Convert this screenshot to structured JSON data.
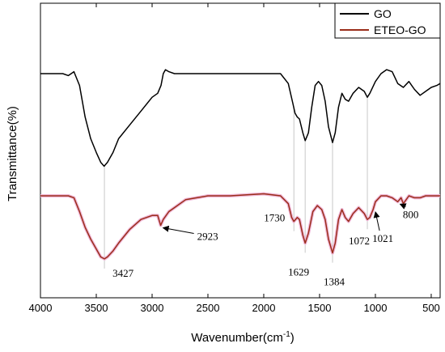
{
  "chart_data": {
    "type": "line",
    "xlabel": "Wavenumber(cm",
    "xlabel_sup": "-1",
    "xlabel_end": ")",
    "ylabel": "Transmittance(%)",
    "xlim": [
      4000,
      420
    ],
    "x_reversed": true,
    "x_ticks": [
      4000,
      3500,
      3000,
      2500,
      2000,
      1500,
      1000,
      500
    ],
    "y_ticks_shown": false,
    "legend_position": "top-right",
    "series": [
      {
        "name": "GO",
        "color": "#000000",
        "points": [
          [
            4000,
            90
          ],
          [
            3800,
            90
          ],
          [
            3750,
            89
          ],
          [
            3700,
            91
          ],
          [
            3650,
            84
          ],
          [
            3600,
            68
          ],
          [
            3550,
            57
          ],
          [
            3500,
            50
          ],
          [
            3460,
            45
          ],
          [
            3430,
            43
          ],
          [
            3400,
            45
          ],
          [
            3350,
            50
          ],
          [
            3300,
            57
          ],
          [
            3200,
            64
          ],
          [
            3100,
            71
          ],
          [
            3000,
            78
          ],
          [
            2950,
            80
          ],
          [
            2920,
            84
          ],
          [
            2900,
            90
          ],
          [
            2880,
            92
          ],
          [
            2850,
            91
          ],
          [
            2800,
            90
          ],
          [
            2500,
            90
          ],
          [
            2000,
            90
          ],
          [
            1850,
            90
          ],
          [
            1780,
            85
          ],
          [
            1740,
            75
          ],
          [
            1720,
            70
          ],
          [
            1700,
            68
          ],
          [
            1680,
            67
          ],
          [
            1650,
            60
          ],
          [
            1629,
            56
          ],
          [
            1600,
            60
          ],
          [
            1570,
            73
          ],
          [
            1540,
            84
          ],
          [
            1510,
            86
          ],
          [
            1480,
            84
          ],
          [
            1450,
            76
          ],
          [
            1420,
            63
          ],
          [
            1384,
            55
          ],
          [
            1360,
            60
          ],
          [
            1330,
            73
          ],
          [
            1300,
            80
          ],
          [
            1270,
            77
          ],
          [
            1240,
            76
          ],
          [
            1200,
            80
          ],
          [
            1150,
            83
          ],
          [
            1100,
            81
          ],
          [
            1072,
            78
          ],
          [
            1050,
            80
          ],
          [
            1000,
            86
          ],
          [
            950,
            90
          ],
          [
            900,
            92
          ],
          [
            850,
            91
          ],
          [
            800,
            85
          ],
          [
            750,
            83
          ],
          [
            700,
            86
          ],
          [
            650,
            82
          ],
          [
            600,
            79
          ],
          [
            550,
            81
          ],
          [
            500,
            83
          ],
          [
            450,
            84
          ],
          [
            420,
            85
          ]
        ]
      },
      {
        "name": "ETEO-GO",
        "color": "#9a2d1a",
        "points": [
          [
            4000,
            28
          ],
          [
            3800,
            28
          ],
          [
            3750,
            28
          ],
          [
            3700,
            27
          ],
          [
            3650,
            20
          ],
          [
            3600,
            12
          ],
          [
            3550,
            6
          ],
          [
            3500,
            1
          ],
          [
            3460,
            -3
          ],
          [
            3427,
            -4
          ],
          [
            3400,
            -3
          ],
          [
            3350,
            0
          ],
          [
            3300,
            4
          ],
          [
            3200,
            11
          ],
          [
            3100,
            16
          ],
          [
            3000,
            18
          ],
          [
            2950,
            18
          ],
          [
            2923,
            13
          ],
          [
            2900,
            16
          ],
          [
            2850,
            20
          ],
          [
            2800,
            22
          ],
          [
            2700,
            26
          ],
          [
            2600,
            27
          ],
          [
            2500,
            28
          ],
          [
            2300,
            28
          ],
          [
            2000,
            29
          ],
          [
            1850,
            28
          ],
          [
            1780,
            24
          ],
          [
            1750,
            17
          ],
          [
            1730,
            15
          ],
          [
            1700,
            17
          ],
          [
            1680,
            16
          ],
          [
            1650,
            8
          ],
          [
            1629,
            4
          ],
          [
            1600,
            9
          ],
          [
            1560,
            20
          ],
          [
            1520,
            23
          ],
          [
            1480,
            21
          ],
          [
            1450,
            16
          ],
          [
            1420,
            6
          ],
          [
            1384,
            -1
          ],
          [
            1360,
            4
          ],
          [
            1330,
            16
          ],
          [
            1300,
            21
          ],
          [
            1270,
            17
          ],
          [
            1240,
            15
          ],
          [
            1200,
            19
          ],
          [
            1150,
            22
          ],
          [
            1100,
            19
          ],
          [
            1072,
            16
          ],
          [
            1050,
            17
          ],
          [
            1021,
            21
          ],
          [
            1000,
            25
          ],
          [
            950,
            28
          ],
          [
            900,
            28
          ],
          [
            850,
            27
          ],
          [
            800,
            25
          ],
          [
            770,
            27
          ],
          [
            750,
            24
          ],
          [
            700,
            28
          ],
          [
            650,
            27
          ],
          [
            600,
            27
          ],
          [
            550,
            28
          ],
          [
            500,
            28
          ],
          [
            450,
            28
          ],
          [
            420,
            28
          ]
        ]
      }
    ],
    "annotations": [
      {
        "text": "3427",
        "x": 3427,
        "y": -4,
        "vline": true
      },
      {
        "text": "2923",
        "x": 2923,
        "y": 13,
        "arrow": true
      },
      {
        "text": "1730",
        "x": 1730,
        "y": 15,
        "vline": true
      },
      {
        "text": "1629",
        "x": 1629,
        "y": 4,
        "vline": true
      },
      {
        "text": "1384",
        "x": 1384,
        "y": -1,
        "vline": true
      },
      {
        "text": "1072",
        "x": 1072,
        "y": 16,
        "vline": true
      },
      {
        "text": "1021",
        "x": 1021,
        "y": 21,
        "arrow": true
      },
      {
        "text": "800",
        "x": 800,
        "y": 25,
        "arrow": true
      }
    ]
  }
}
